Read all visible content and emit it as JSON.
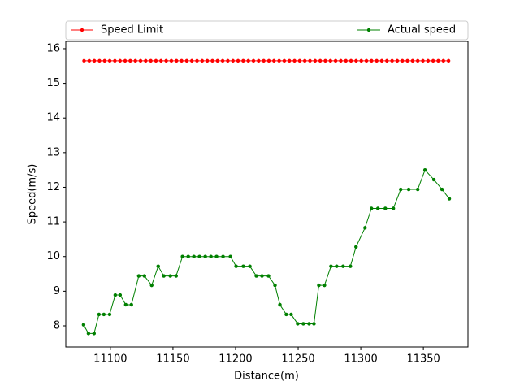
{
  "chart_data": {
    "type": "line",
    "xlabel": "Distance(m)",
    "ylabel": "Speed(m/s)",
    "xlim": [
      11064.4,
      11385.6
    ],
    "xticks": [
      11100,
      11150,
      11200,
      11250,
      11300,
      11350
    ],
    "ylim": [
      7.39,
      16.21
    ],
    "yticks": [
      8,
      9,
      10,
      11,
      12,
      13,
      14,
      15,
      16
    ],
    "legend": "top",
    "series": [
      {
        "name": "Speed Limit",
        "color": "#ff0000",
        "x": [
          11079,
          11083.1,
          11087.2,
          11091.3,
          11095.4,
          11099.5,
          11103.6,
          11107.7,
          11111.8,
          11115.9,
          11120,
          11124.1,
          11128.2,
          11132.3,
          11136.4,
          11140.5,
          11144.6,
          11148.7,
          11152.8,
          11156.9,
          11161,
          11165.1,
          11169.2,
          11173.3,
          11177.4,
          11181.5,
          11185.6,
          11189.7,
          11193.8,
          11197.9,
          11202,
          11206.1,
          11210.2,
          11214.3,
          11218.4,
          11222.5,
          11226.6,
          11230.7,
          11234.8,
          11238.9,
          11243,
          11247.1,
          11251.2,
          11255.3,
          11259.4,
          11263.5,
          11267.6,
          11271.7,
          11275.8,
          11279.9,
          11284,
          11288.1,
          11292.2,
          11296.3,
          11300.4,
          11304.5,
          11308.6,
          11312.7,
          11316.8,
          11320.9,
          11325,
          11329.1,
          11333.2,
          11337.3,
          11341.4,
          11345.5,
          11349.6,
          11353.7,
          11357.8,
          11361.9,
          11366,
          11370.1
        ],
        "values": [
          15.65,
          15.65,
          15.65,
          15.65,
          15.65,
          15.65,
          15.65,
          15.65,
          15.65,
          15.65,
          15.65,
          15.65,
          15.65,
          15.65,
          15.65,
          15.65,
          15.65,
          15.65,
          15.65,
          15.65,
          15.65,
          15.65,
          15.65,
          15.65,
          15.65,
          15.65,
          15.65,
          15.65,
          15.65,
          15.65,
          15.65,
          15.65,
          15.65,
          15.65,
          15.65,
          15.65,
          15.65,
          15.65,
          15.65,
          15.65,
          15.65,
          15.65,
          15.65,
          15.65,
          15.65,
          15.65,
          15.65,
          15.65,
          15.65,
          15.65,
          15.65,
          15.65,
          15.65,
          15.65,
          15.65,
          15.65,
          15.65,
          15.65,
          15.65,
          15.65,
          15.65,
          15.65,
          15.65,
          15.65,
          15.65,
          15.65,
          15.65,
          15.65,
          15.65,
          15.65,
          15.65,
          15.65
        ]
      },
      {
        "name": "Actual speed",
        "color": "#008000",
        "x": [
          11078.6,
          11082.5,
          11087.0,
          11090.9,
          11094.8,
          11099.4,
          11103.9,
          11107.8,
          11112.3,
          11116.8,
          11122.7,
          11127.2,
          11133.0,
          11138.2,
          11142.7,
          11147.9,
          11152.5,
          11157.6,
          11162.2,
          11166.7,
          11171.2,
          11175.8,
          11180.3,
          11184.8,
          11190.0,
          11195.9,
          11200.4,
          11206.2,
          11211.4,
          11216.6,
          11221.1,
          11226.3,
          11231.5,
          11235.4,
          11240.5,
          11244.4,
          11249.6,
          11254.1,
          11258.7,
          11262.6,
          11266.5,
          11271.0,
          11276.2,
          11280.7,
          11285.9,
          11291.7,
          11296.2,
          11303.4,
          11308.5,
          11313.7,
          11319.6,
          11326.0,
          11331.9,
          11338.3,
          11345.5,
          11351.3,
          11358.4,
          11364.9,
          11370.7
        ],
        "values": [
          8.03,
          7.78,
          7.78,
          8.33,
          8.33,
          8.33,
          8.89,
          8.89,
          8.61,
          8.61,
          9.44,
          9.44,
          9.17,
          9.72,
          9.44,
          9.44,
          9.44,
          10,
          10,
          10,
          10,
          10,
          10,
          10,
          10,
          10,
          9.72,
          9.72,
          9.72,
          9.44,
          9.44,
          9.44,
          9.17,
          8.61,
          8.33,
          8.33,
          8.06,
          8.06,
          8.06,
          8.06,
          9.17,
          9.17,
          9.72,
          9.72,
          9.72,
          9.72,
          10.28,
          10.83,
          11.39,
          11.39,
          11.39,
          11.39,
          11.94,
          11.94,
          11.94,
          12.5,
          12.22,
          11.94,
          11.67
        ]
      }
    ]
  }
}
